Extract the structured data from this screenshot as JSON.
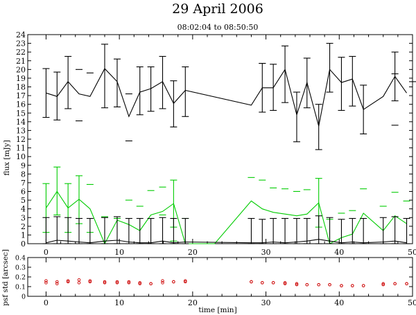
{
  "chart_data": [
    {
      "type": "line",
      "title": "29 April 2006",
      "subtitle": "08:02:04 to 08:50:50",
      "xlabel": "",
      "ylabel": "flux [mJy]",
      "xlim": [
        -2.5,
        50
      ],
      "ylim": [
        0,
        24
      ],
      "x_ticks": [
        0,
        10,
        20,
        30,
        40,
        50
      ],
      "y_ticks": [
        0,
        1,
        2,
        3,
        4,
        5,
        6,
        7,
        8,
        9,
        10,
        11,
        12,
        13,
        14,
        15,
        16,
        17,
        18,
        19,
        20,
        21,
        22,
        23,
        24
      ],
      "series": [
        {
          "color": "#000000",
          "x": [
            0,
            1.5,
            3,
            4.5,
            6,
            8,
            9.7,
            11.3,
            12.8,
            14.3,
            15.9,
            17.4,
            19,
            28,
            29.5,
            31,
            32.6,
            34.2,
            35.6,
            37.2,
            38.7,
            40.3,
            41.8,
            43.3,
            46,
            47.6,
            49.2
          ],
          "y": [
            17.3,
            16.9,
            18.6,
            17.2,
            16.9,
            20.1,
            18.6,
            14.6,
            17.4,
            17.8,
            18.6,
            16.1,
            17.6,
            15.9,
            17.9,
            17.9,
            20.0,
            14.8,
            18.5,
            13.5,
            20.0,
            18.5,
            18.9,
            15.4,
            16.9,
            19.2,
            17.3
          ],
          "err_low": [
            14.5,
            14.2,
            15.5,
            null,
            null,
            15.6,
            15.7,
            null,
            14.8,
            15.2,
            15.5,
            13.4,
            14.6,
            null,
            15.1,
            15.3,
            16.2,
            11.7,
            15.6,
            10.8,
            17.4,
            15.3,
            15.8,
            12.6,
            null,
            16.4,
            null
          ],
          "err_high": [
            20.1,
            19.7,
            21.5,
            null,
            null,
            22.9,
            21.2,
            null,
            20.3,
            20.3,
            21.5,
            18.7,
            20.3,
            null,
            20.7,
            20.6,
            22.7,
            17.4,
            21.3,
            16.0,
            23.0,
            21.4,
            21.5,
            18.2,
            null,
            22.0,
            null
          ],
          "cap_marks": [
            [
              4.5,
              14.1
            ],
            [
              4.5,
              20.0
            ],
            [
              6,
              19.6
            ],
            [
              11.3,
              11.8
            ],
            [
              11.3,
              17.2
            ],
            [
              47.6,
              13.6
            ],
            [
              47.6,
              19.5
            ],
            [
              50,
              18.6
            ],
            [
              29.5,
              20.7
            ]
          ]
        },
        {
          "color": "#00cc00",
          "x": [
            0,
            1.5,
            3,
            4.5,
            6,
            8,
            9.7,
            11.3,
            12.8,
            14.3,
            15.9,
            17.4,
            19,
            21,
            23,
            28,
            29.5,
            31,
            32.6,
            34.2,
            35.6,
            37.2,
            38.7,
            40.3,
            41.8,
            43.3,
            46,
            47.6,
            49.2
          ],
          "y": [
            4.1,
            6.0,
            4.1,
            5.1,
            4.0,
            0,
            2.7,
            2.2,
            1.5,
            3.3,
            3.7,
            4.6,
            0,
            0,
            0,
            4.9,
            4.0,
            3.6,
            3.4,
            3.2,
            3.4,
            4.7,
            0,
            0.7,
            1.1,
            3.5,
            1.5,
            3.2,
            2.3
          ],
          "err_low": [
            1.3,
            3.3,
            1.3,
            2.3,
            null,
            null,
            null,
            null,
            null,
            null,
            null,
            1.9,
            null,
            null,
            null,
            null,
            null,
            null,
            null,
            null,
            null,
            1.9,
            null,
            null,
            null,
            null,
            null,
            null,
            null
          ],
          "err_high": [
            6.9,
            8.8,
            6.9,
            7.8,
            null,
            null,
            null,
            null,
            null,
            null,
            null,
            7.3,
            null,
            null,
            null,
            null,
            null,
            null,
            null,
            null,
            null,
            7.5,
            null,
            null,
            null,
            null,
            null,
            null,
            null
          ],
          "cap_marks": [
            [
              6,
              1.3
            ],
            [
              6,
              6.8
            ],
            [
              8,
              3.1
            ],
            [
              9.7,
              2.9
            ],
            [
              11.3,
              5.0
            ],
            [
              12.8,
              4.3
            ],
            [
              14.3,
              6.1
            ],
            [
              15.9,
              3.3
            ],
            [
              15.9,
              6.5
            ],
            [
              17.4,
              0.3
            ],
            [
              19,
              2.9
            ],
            [
              28,
              7.6
            ],
            [
              29.5,
              7.3
            ],
            [
              31,
              6.4
            ],
            [
              32.6,
              6.3
            ],
            [
              34.2,
              6.0
            ],
            [
              35.6,
              6.2
            ],
            [
              38.7,
              2.8
            ],
            [
              40.3,
              3.5
            ],
            [
              41.8,
              3.8
            ],
            [
              43.3,
              6.3
            ],
            [
              46,
              4.3
            ],
            [
              47.6,
              5.9
            ],
            [
              49.2,
              4.9
            ]
          ]
        },
        {
          "color": "#000000",
          "x": [
            0,
            1.5,
            3,
            4.5,
            6,
            8,
            9.7,
            11.3,
            12.8,
            14.3,
            15.9,
            17.4,
            19,
            28,
            29.5,
            31,
            32.6,
            34.2,
            35.6,
            37.2,
            38.7,
            40.3,
            41.8,
            43.3,
            46,
            47.6,
            49.2
          ],
          "y": [
            0.1,
            0.4,
            0.3,
            0.2,
            0.1,
            0.3,
            0.4,
            0.2,
            0.1,
            0.1,
            0.3,
            0.1,
            0.2,
            0.1,
            0.1,
            0.2,
            0.1,
            0.2,
            0.3,
            0.5,
            0.3,
            0.1,
            0.2,
            0.1,
            0.2,
            0.3,
            0.1
          ],
          "err_low": [
            0,
            0,
            0,
            0,
            0,
            0,
            0,
            0,
            0,
            0,
            0,
            0,
            0,
            0,
            0,
            0,
            0,
            0,
            0,
            0,
            0,
            0,
            0,
            0,
            0,
            0,
            0
          ],
          "err_high": [
            3.0,
            3.1,
            3.0,
            2.9,
            2.9,
            3.0,
            3.1,
            2.9,
            2.9,
            2.9,
            3.0,
            2.9,
            2.9,
            2.9,
            2.8,
            2.9,
            2.9,
            2.9,
            2.9,
            3.2,
            3.0,
            2.8,
            2.9,
            2.9,
            3.0,
            3.1,
            2.9
          ]
        }
      ]
    },
    {
      "type": "scatter",
      "xlabel": "time [min]",
      "ylabel": "psf std [arcsec]",
      "xlim": [
        -2.5,
        50
      ],
      "ylim": [
        0,
        0.4
      ],
      "x_ticks": [
        0,
        10,
        20,
        30,
        40,
        50
      ],
      "y_ticks": [
        "0",
        "0.1",
        "0.2",
        "0.3",
        "0.4"
      ],
      "marker_color": "#cc0000",
      "x": [
        0,
        1.5,
        3,
        4.5,
        6,
        8,
        9.7,
        11.3,
        12.8,
        14.3,
        15.9,
        17.4,
        19,
        28,
        29.5,
        31,
        32.6,
        34.2,
        35.6,
        37.2,
        38.7,
        40.3,
        41.8,
        43.3,
        46,
        47.6,
        49.2
      ],
      "y": [
        0.14,
        0.13,
        0.15,
        0.14,
        0.15,
        0.14,
        0.14,
        0.14,
        0.13,
        0.13,
        0.14,
        0.15,
        0.16,
        0.15,
        0.14,
        0.14,
        0.13,
        0.13,
        0.12,
        0.12,
        0.12,
        0.11,
        0.11,
        0.11,
        0.12,
        0.13,
        0.13
      ],
      "y2": [
        0.16,
        0.15,
        0.16,
        0.17,
        0.16,
        0.15,
        0.15,
        0.15,
        0.14,
        0.13,
        0.16,
        0.15,
        0.15,
        0.15,
        0.14,
        0.14,
        0.14,
        0.12,
        0.12,
        0.12,
        0.12,
        0.11,
        0.11,
        0.11,
        0.13,
        0.13,
        0.13
      ]
    }
  ]
}
